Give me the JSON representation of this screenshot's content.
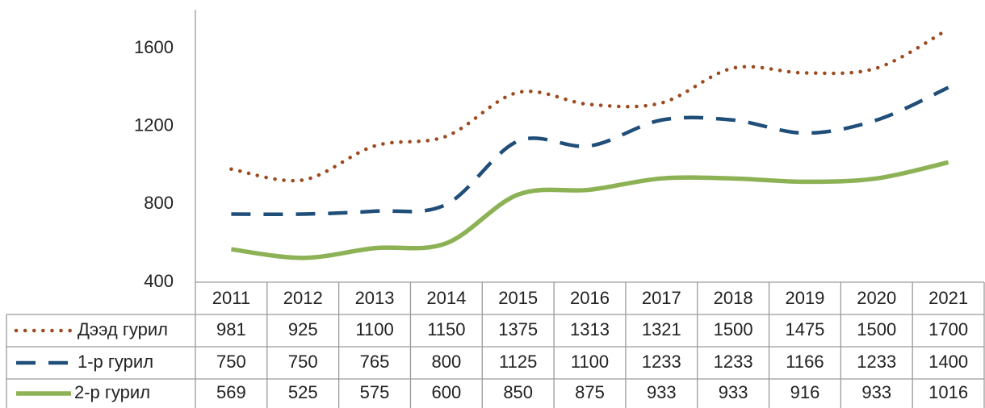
{
  "chart_data": {
    "type": "line",
    "categories": [
      "2011",
      "2012",
      "2013",
      "2014",
      "2015",
      "2016",
      "2017",
      "2018",
      "2019",
      "2020",
      "2021"
    ],
    "series": [
      {
        "name": "Дээд гурил",
        "color": "#9c4a1e",
        "style": "dotted",
        "values": [
          981,
          925,
          1100,
          1150,
          1375,
          1313,
          1321,
          1500,
          1475,
          1500,
          1700
        ]
      },
      {
        "name": "1-р гурил",
        "color": "#1f4e79",
        "style": "dashed",
        "values": [
          750,
          750,
          765,
          800,
          1125,
          1100,
          1233,
          1233,
          1166,
          1233,
          1400
        ]
      },
      {
        "name": "2-р гурил",
        "color": "#8db255",
        "style": "solid",
        "values": [
          569,
          525,
          575,
          600,
          850,
          875,
          933,
          933,
          916,
          933,
          1016
        ]
      }
    ],
    "ylim": [
      400,
      1800
    ],
    "yticks": [
      400,
      800,
      1200,
      1600
    ],
    "grid": false
  }
}
